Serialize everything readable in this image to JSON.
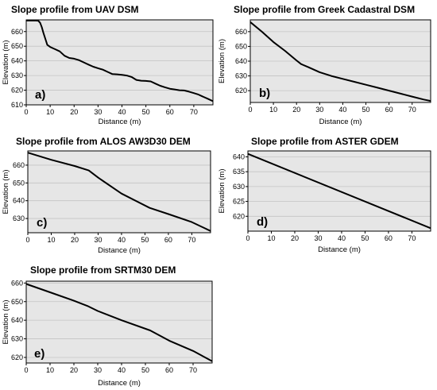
{
  "chart_data": [
    {
      "type": "line",
      "title": "Slope profile from UAV DSM",
      "panel_label": "a)",
      "xlabel": "Distance (m)",
      "ylabel": "Elevation (m)",
      "xlim": [
        0,
        78
      ],
      "ylim": [
        610,
        668
      ],
      "xticks": [
        0,
        10,
        20,
        30,
        40,
        50,
        60,
        70
      ],
      "yticks": [
        610,
        620,
        630,
        640,
        650,
        660
      ],
      "grid": "horizontal",
      "x": [
        0,
        2,
        4,
        5,
        5.8,
        6.5,
        7.2,
        8,
        8.8,
        10,
        12,
        14,
        16,
        18,
        20,
        22,
        24,
        26,
        28,
        30,
        32,
        34,
        36,
        38,
        40,
        42,
        44,
        46,
        48,
        50,
        52,
        54,
        56,
        58,
        60,
        62,
        64,
        66,
        68,
        70,
        72,
        74,
        76,
        78
      ],
      "y": [
        667.5,
        667.5,
        667.5,
        667.4,
        666,
        663,
        659,
        655,
        651,
        649.5,
        648,
        646.5,
        643.5,
        642,
        641.5,
        640.5,
        639,
        637.5,
        636,
        635,
        634,
        632.5,
        631,
        630.8,
        630.5,
        630,
        629,
        627,
        626.5,
        626.3,
        626,
        624.5,
        623,
        622,
        621,
        620.5,
        620,
        619.8,
        619,
        618,
        617,
        615.5,
        614,
        612.5
      ]
    },
    {
      "type": "line",
      "title": "Slope profile from Greek Cadastral DSM",
      "panel_label": "b)",
      "xlabel": "Distance (m)",
      "ylabel": "Elevation (m)",
      "xlim": [
        0,
        78
      ],
      "ylim": [
        612,
        668
      ],
      "xticks": [
        0,
        10,
        20,
        30,
        40,
        50,
        60,
        70
      ],
      "yticks": [
        620,
        630,
        640,
        650,
        660
      ],
      "grid": "horizontal",
      "x": [
        0,
        5,
        10,
        15,
        20,
        22,
        25,
        30,
        35,
        40,
        45,
        50,
        55,
        60,
        65,
        70,
        75,
        78
      ],
      "y": [
        666.5,
        660,
        653,
        647,
        640.5,
        638,
        636,
        632.5,
        630,
        628,
        626,
        624,
        622,
        620,
        618,
        616,
        614,
        613
      ]
    },
    {
      "type": "line",
      "title": "Slope profile from ALOS AW3D30 DEM",
      "panel_label": "c)",
      "xlabel": "Distance (m)",
      "ylabel": "Elevation (m)",
      "xlim": [
        0,
        78
      ],
      "ylim": [
        622,
        668
      ],
      "xticks": [
        0,
        10,
        20,
        30,
        40,
        50,
        60,
        70
      ],
      "yticks": [
        630,
        640,
        650,
        660
      ],
      "grid": "horizontal",
      "x": [
        0,
        10,
        20,
        26,
        30,
        40,
        52,
        60,
        70,
        78
      ],
      "y": [
        667,
        663,
        659.5,
        657,
        653,
        644,
        636,
        632.5,
        628,
        623
      ]
    },
    {
      "type": "line",
      "title": "Slope profile from ASTER GDEM",
      "panel_label": "d)",
      "xlabel": "Distance (m)",
      "ylabel": "Elevation (m)",
      "xlim": [
        0,
        78
      ],
      "ylim": [
        615,
        642
      ],
      "xticks": [
        0,
        10,
        20,
        30,
        40,
        50,
        60,
        70
      ],
      "yticks": [
        620,
        625,
        630,
        635,
        640
      ],
      "grid": "horizontal",
      "x": [
        0,
        78
      ],
      "y": [
        641,
        616
      ]
    },
    {
      "type": "line",
      "title": "Slope profile from SRTM30 DEM",
      "panel_label": "e)",
      "xlabel": "Distance (m)",
      "ylabel": "Elevation (m)",
      "xlim": [
        0,
        78
      ],
      "ylim": [
        617,
        661
      ],
      "xticks": [
        0,
        10,
        20,
        30,
        40,
        50,
        60,
        70
      ],
      "yticks": [
        620,
        630,
        640,
        650,
        660
      ],
      "grid": "horizontal",
      "x": [
        0,
        10,
        20,
        26,
        30,
        40,
        52,
        60,
        70,
        78
      ],
      "y": [
        659.5,
        655,
        650.5,
        647.5,
        645,
        640,
        634.5,
        629,
        623.5,
        618
      ]
    }
  ]
}
